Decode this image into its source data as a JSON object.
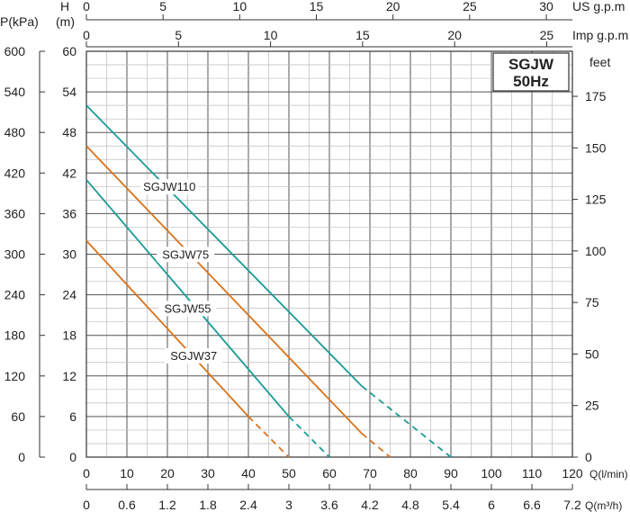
{
  "badge": {
    "model": "SGJW",
    "freq": "50Hz"
  },
  "labels": {
    "pressure_unit": "P(kPa)",
    "head_h": "H",
    "head_m": "(m)",
    "us_gpm": "US g.p.m",
    "imp_gpm": "Imp g.p.m",
    "feet": "feet",
    "q_lmin": "Q(l/min)",
    "q_m3h": "Q(m³/h)"
  },
  "colors": {
    "teal": "#1a9b96",
    "orange": "#d9731c",
    "grid_major": "#555555",
    "grid_minor": "#bdbdbd"
  },
  "chart_data": {
    "type": "line",
    "x_unit": "l/min",
    "y_unit": "m",
    "xlim": [
      0,
      120
    ],
    "ylim": [
      0,
      60
    ],
    "grid": true,
    "x_ticks": [
      0,
      10,
      20,
      30,
      40,
      50,
      60,
      70,
      80,
      90,
      100,
      110,
      120
    ],
    "y_ticks": [
      0,
      6,
      12,
      18,
      24,
      30,
      36,
      42,
      48,
      54,
      60
    ],
    "kpa_ticks": [
      "0",
      "60",
      "120",
      "180",
      "240",
      "300",
      "360",
      "420",
      "480",
      "540",
      "600"
    ],
    "feet_ticks": [
      "0",
      "25",
      "50",
      "75",
      "100",
      "125",
      "150",
      "175"
    ],
    "feet_values": [
      0,
      25,
      50,
      75,
      100,
      125,
      150,
      175
    ],
    "us_ticks": [
      "0",
      "5",
      "10",
      "15",
      "20",
      "25",
      "30"
    ],
    "us_values": [
      0,
      5,
      10,
      15,
      20,
      25,
      30
    ],
    "imp_ticks": [
      "0",
      "5",
      "10",
      "15",
      "20",
      "25"
    ],
    "imp_values": [
      0,
      5,
      10,
      15,
      20,
      25
    ],
    "m3h_ticks": [
      "0",
      "0.6",
      "1.2",
      "1.8",
      "2.4",
      "3",
      "3.6",
      "4.2",
      "4.8",
      "5.4",
      "6",
      "6.6",
      "7.2"
    ],
    "series": [
      {
        "name": "SGJW110",
        "color": "teal",
        "solid": [
          [
            0,
            52
          ],
          [
            68,
            10.5
          ]
        ],
        "dashed": [
          [
            68,
            10.5
          ],
          [
            90,
            0
          ]
        ],
        "label_at": [
          20.5,
          39.5
        ]
      },
      {
        "name": "SGJW75",
        "color": "orange",
        "solid": [
          [
            0,
            46
          ],
          [
            68,
            3.5
          ]
        ],
        "dashed": [
          [
            68,
            3.5
          ],
          [
            75,
            0
          ]
        ],
        "label_at": [
          24.5,
          29.5
        ]
      },
      {
        "name": "SGJW55",
        "color": "teal",
        "solid": [
          [
            0,
            41
          ],
          [
            50,
            6
          ]
        ],
        "dashed": [
          [
            50,
            6
          ],
          [
            60,
            0
          ]
        ],
        "label_at": [
          25,
          21.5
        ]
      },
      {
        "name": "SGJW37",
        "color": "orange",
        "solid": [
          [
            0,
            32
          ],
          [
            40,
            6
          ]
        ],
        "dashed": [
          [
            40,
            6
          ],
          [
            50,
            0
          ]
        ],
        "label_at": [
          26.5,
          14.5
        ]
      }
    ]
  }
}
